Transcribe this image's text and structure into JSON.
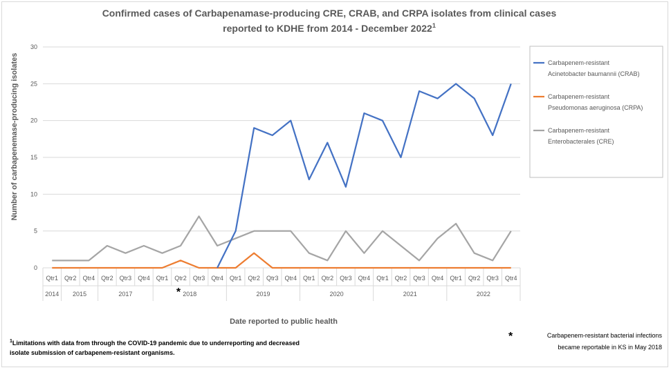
{
  "chart_data": {
    "type": "line",
    "title_line1": "Confirmed cases of Carbapenamase-producing CRE, CRAB, and CRPA isolates from clinical cases",
    "title_line2": "reported to KDHE from 2014 - December 2022",
    "title_superscript": "1",
    "ylabel": "Number of carbapenemase-producing isolates",
    "xlabel": "Date reported to public health",
    "ylim": [
      0,
      30
    ],
    "yticks": [
      0,
      5,
      10,
      15,
      20,
      25,
      30
    ],
    "grid": true,
    "legend_position": "right",
    "categories": [
      "Qtr1",
      "Qtr2",
      "Qtr4",
      "Qtr2",
      "Qtr3",
      "Qtr4",
      "Qtr1",
      "Qtr2",
      "Qtr3",
      "Qtr4",
      "Qtr1",
      "Qtr2",
      "Qtr3",
      "Qtr4",
      "Qtr1",
      "Qtr2",
      "Qtr3",
      "Qtr4",
      "Qtr1",
      "Qtr2",
      "Qtr3",
      "Qtr4",
      "Qtr1",
      "Qtr2",
      "Qtr3",
      "Qtr4"
    ],
    "year_groups": [
      {
        "label": "2014",
        "count": 1
      },
      {
        "label": "2015",
        "count": 2
      },
      {
        "label": "2017",
        "count": 3
      },
      {
        "label": "2018",
        "count": 4
      },
      {
        "label": "2019",
        "count": 4
      },
      {
        "label": "2020",
        "count": 4
      },
      {
        "label": "2021",
        "count": 4
      },
      {
        "label": "2022",
        "count": 4
      }
    ],
    "series": [
      {
        "name": "Carbapenem-resistant Acinetobacter baumannii (CRAB)",
        "name_lines": [
          "Carbapenem-resistant",
          "Acinetobacter baumannii (CRAB)"
        ],
        "color": "#4472c4",
        "start_index": 9,
        "values": [
          null,
          null,
          null,
          null,
          null,
          null,
          null,
          null,
          null,
          0,
          5,
          19,
          18,
          20,
          12,
          17,
          11,
          21,
          20,
          15,
          24,
          23,
          25,
          23,
          18,
          25
        ]
      },
      {
        "name": "Carbapenem-resistant Pseudomonas aeruginosa (CRPA)",
        "name_lines": [
          "Carbapenem-resistant",
          "Pseudomonas aeruginosa (CRPA)"
        ],
        "color": "#ed7d31",
        "values": [
          0,
          0,
          0,
          0,
          0,
          0,
          0,
          1,
          0,
          0,
          0,
          2,
          0,
          0,
          0,
          0,
          0,
          0,
          0,
          0,
          0,
          0,
          0,
          0,
          0,
          0
        ]
      },
      {
        "name": "Carbapenem-resistant Enterobacterales (CRE)",
        "name_lines": [
          "Carbapenem-resistant",
          "Enterobacterales (CRE)"
        ],
        "color": "#a5a5a5",
        "values": [
          1,
          1,
          1,
          3,
          2,
          3,
          2,
          3,
          7,
          3,
          4,
          5,
          5,
          5,
          2,
          1,
          5,
          2,
          5,
          3,
          1,
          4,
          6,
          2,
          1,
          5
        ]
      }
    ],
    "asterisk_mark": "*",
    "footnote_superscript": "1",
    "footnote_line1": "Limitations with data from through the COVID-19 pandemic due to underreporting and decreased",
    "footnote_line2": "isolate submission of carbapenem-resistant organisms.",
    "note_line1": "Carbapenem-resistant bacterial infections",
    "note_line2": "became reportable in KS in May 2018"
  }
}
